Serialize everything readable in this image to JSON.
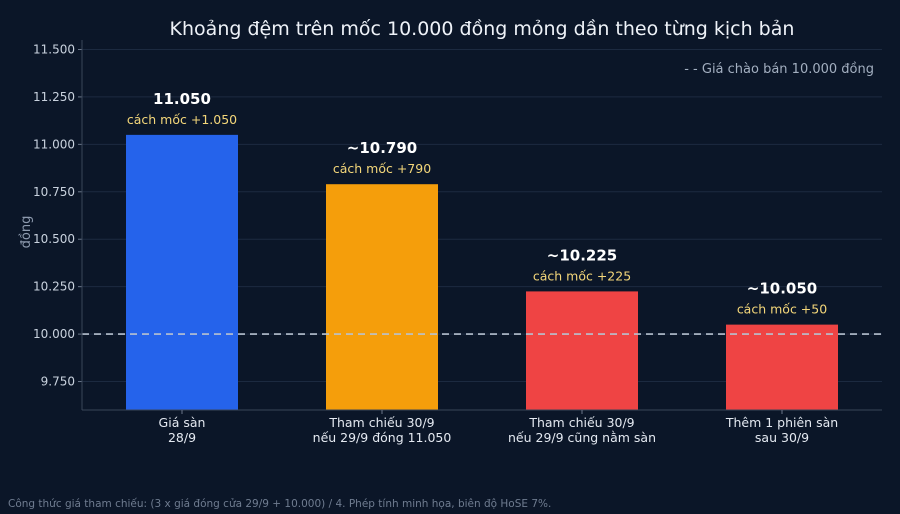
{
  "chart_data": {
    "type": "bar",
    "title": "Khoảng đệm trên mốc 10.000 đồng mỏng dần theo từng kịch bản",
    "ylabel": "đồng",
    "ylim": [
      9600,
      11550
    ],
    "yticks": [
      9750,
      10000,
      10250,
      10500,
      10750,
      11000,
      11250,
      11500
    ],
    "ytick_labels": [
      "9.750",
      "10.000",
      "10.250",
      "10.500",
      "10.750",
      "11.000",
      "11.250",
      "11.500"
    ],
    "grid": true,
    "categories": [
      [
        "Giá sàn",
        "28/9"
      ],
      [
        "Tham chiếu 30/9",
        "nếu 29/9 đóng 11.050"
      ],
      [
        "Tham chiếu 30/9",
        "nếu 29/9 cũng nằm sàn"
      ],
      [
        "Thêm 1 phiên sàn",
        "sau 30/9"
      ]
    ],
    "values": [
      11050,
      10790,
      10225,
      10050
    ],
    "value_labels": [
      "11.050",
      "~10.790",
      "~10.225",
      "~10.050"
    ],
    "diff_labels": [
      "cách mốc +1.050",
      "cách mốc +790",
      "cách mốc +225",
      "cách mốc +50"
    ],
    "colors": [
      "#2563eb",
      "#f59e0b",
      "#ef4444",
      "#ef4444"
    ],
    "reference_line": {
      "value": 10000,
      "label": "- - Giá chào bán 10.000 đồng",
      "color": "#b8c2d0"
    },
    "legend_position": "top-right"
  },
  "footnote": "Công thức giá tham chiếu: (3 x giá đóng cửa 29/9 + 10.000) / 4. Phép tính minh họa, biên độ HoSE 7%."
}
